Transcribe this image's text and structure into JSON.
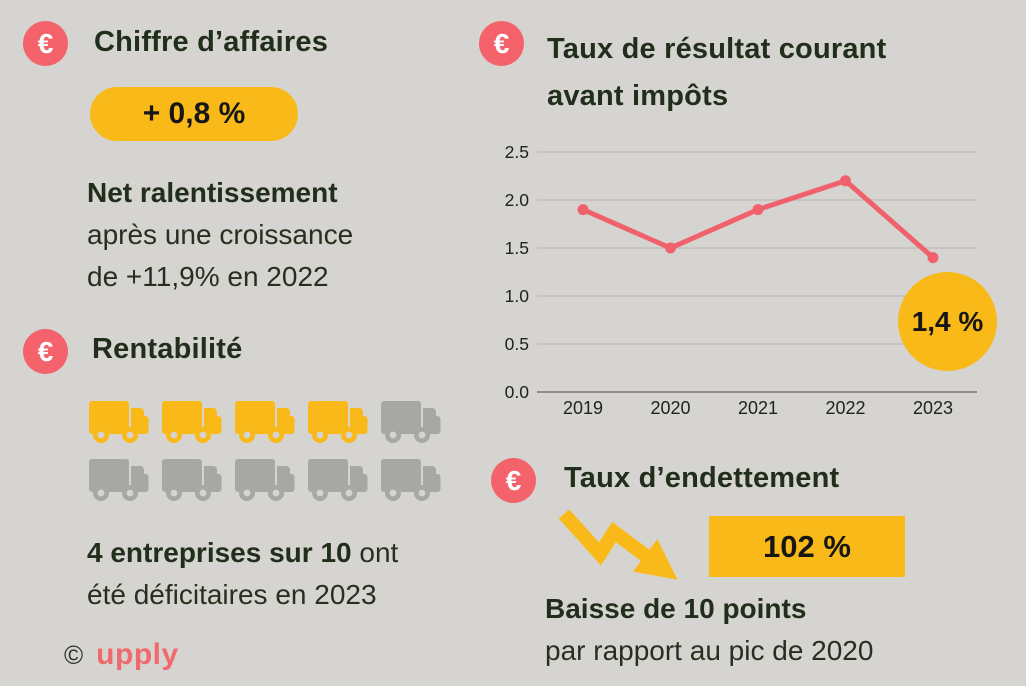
{
  "colors": {
    "background": "#d6d4d0",
    "coral": "#f4636c",
    "yellow": "#f9ba19",
    "truck_gray": "#a7a7a5",
    "heading": "#212e1b",
    "grid": "#c2c0bc",
    "axis": "#8d8b87",
    "tick_text": "#21211f"
  },
  "revenue": {
    "euro_symbol": "€",
    "title": "Chiffre d’affaires",
    "badge": "+ 0,8 %",
    "note_bold": "Net ralentissement",
    "note_line2": "après une croissance",
    "note_line3": "de +11,9% en 2022"
  },
  "profitability": {
    "euro_symbol": "€",
    "title": "Rentabilité",
    "trucks_highlighted": 4,
    "trucks_total": 10,
    "note_bold": "4 entreprises sur 10",
    "note_regular": " ont",
    "note_line2": "été déficitaires en 2023"
  },
  "pretax": {
    "euro_symbol": "€",
    "title_line1": "Taux de résultat courant",
    "title_line2": "avant impôts",
    "callout": "1,4 %"
  },
  "debt": {
    "euro_symbol": "€",
    "title": "Taux d’endettement",
    "badge": "102 %",
    "note_bold": "Baisse de 10 points",
    "note_line2": "par rapport au pic de 2020"
  },
  "footer": {
    "copyright": "©",
    "brand": "upply"
  },
  "chart_data": {
    "type": "line",
    "title": "Taux de résultat courant avant impôts",
    "categories": [
      "2019",
      "2020",
      "2021",
      "2022",
      "2023"
    ],
    "values": [
      1.9,
      1.5,
      1.9,
      2.2,
      1.4
    ],
    "unit": "%",
    "ylim": [
      0,
      2.5
    ],
    "yticks": [
      "0.0",
      "0.5",
      "1.0",
      "1.5",
      "2.0",
      "2.5"
    ],
    "line_color": "#f0616b",
    "grid": true,
    "legend": false
  }
}
